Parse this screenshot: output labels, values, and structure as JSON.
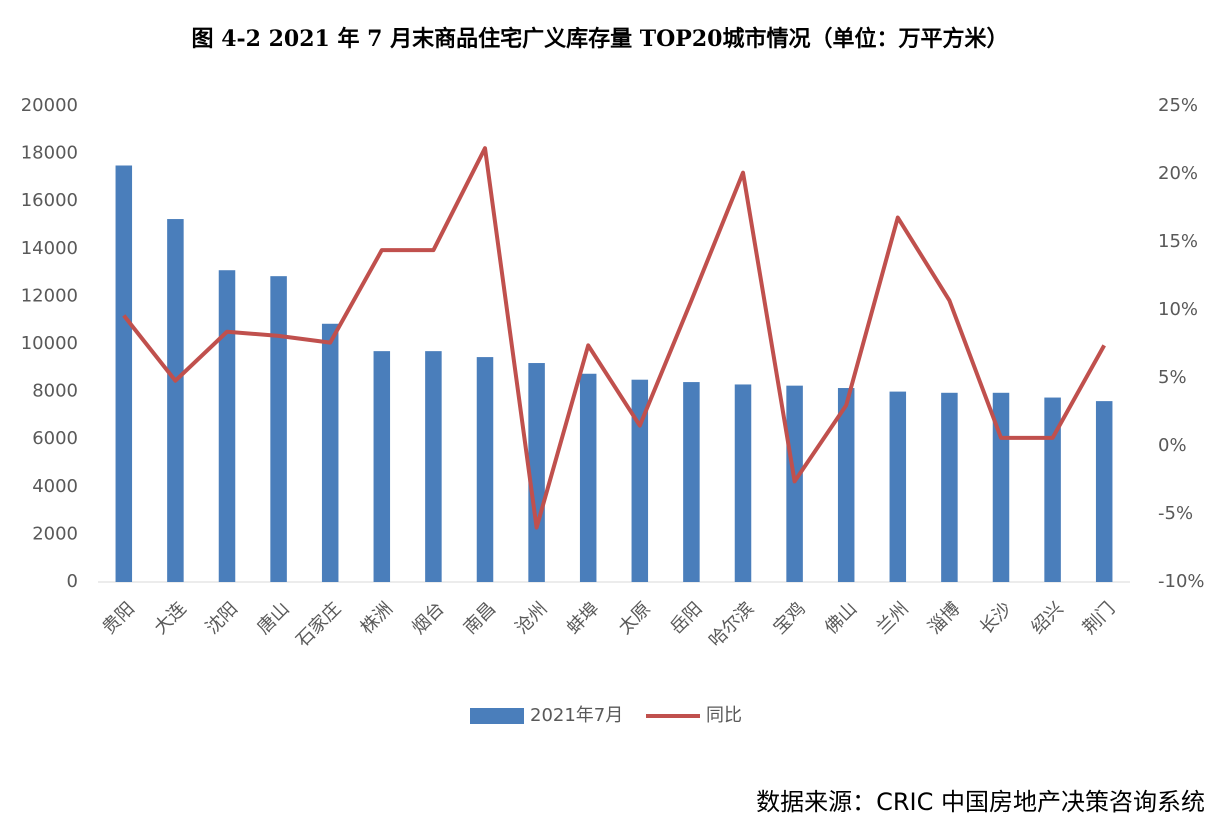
{
  "chart_data": {
    "type": "bar",
    "title": "图 4-2 2021 年 7 月末商品住宅广义库存量 TOP20城市情况（单位：万平方米）",
    "source": "数据来源：CRIC 中国房地产决策咨询系统",
    "categories": [
      "贵阳",
      "大连",
      "沈阳",
      "唐山",
      "石家庄",
      "株洲",
      "烟台",
      "南昌",
      "沧州",
      "蚌埠",
      "太原",
      "岳阳",
      "哈尔滨",
      "宝鸡",
      "佛山",
      "兰州",
      "淄博",
      "长沙",
      "绍兴",
      "荆门"
    ],
    "series": [
      {
        "name": "2021年7月",
        "type": "bar",
        "color": "#4a7ebb",
        "axis": "y",
        "values": [
          17500,
          15250,
          13100,
          12850,
          10850,
          9700,
          9700,
          9450,
          9200,
          8750,
          8500,
          8400,
          8300,
          8250,
          8150,
          8000,
          7950,
          7950,
          7750,
          7600
        ]
      },
      {
        "name": "同比",
        "type": "line",
        "color": "#c0504d",
        "axis": "y2",
        "values": [
          9.6,
          4.8,
          8.4,
          8.1,
          7.6,
          14.4,
          14.4,
          21.9,
          -6.0,
          7.4,
          1.5,
          10.7,
          20.1,
          -2.6,
          3.0,
          16.8,
          10.7,
          0.6,
          0.6,
          7.4
        ]
      }
    ],
    "ylim": [
      0,
      20000
    ],
    "yticks": [
      0,
      2000,
      4000,
      6000,
      8000,
      10000,
      12000,
      14000,
      16000,
      18000,
      20000
    ],
    "y2lim": [
      -10,
      25
    ],
    "y2ticks": [
      {
        "value": -10,
        "label": "-10%"
      },
      {
        "value": -5,
        "label": "-5%"
      },
      {
        "value": 0,
        "label": "0%"
      },
      {
        "value": 5,
        "label": "5%"
      },
      {
        "value": 10,
        "label": "10%"
      },
      {
        "value": 15,
        "label": "15%"
      },
      {
        "value": 20,
        "label": "20%"
      },
      {
        "value": 25,
        "label": "25%"
      }
    ],
    "grid": false,
    "legend": "bottom"
  }
}
